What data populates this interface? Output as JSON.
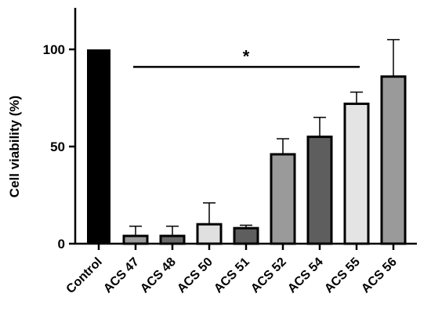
{
  "chart_data": {
    "type": "bar",
    "ylabel": "Cell viability (%)",
    "xlabel": "",
    "ylim": [
      0,
      100
    ],
    "yticks": [
      0,
      50,
      100
    ],
    "grid": false,
    "categories": [
      "Control",
      "ACS 47",
      "ACS 48",
      "ACS 50",
      "ACS 51",
      "ACS 52",
      "ACS 54",
      "ACS 55",
      "ACS 56"
    ],
    "values": [
      100,
      4,
      4,
      10,
      8,
      46,
      55,
      72,
      86
    ],
    "error_upper": [
      0,
      9,
      9,
      21,
      9.5,
      54,
      65,
      78,
      105
    ],
    "colors": [
      "#000000",
      "#9a9a9a",
      "#6a6a6a",
      "#e0e0e0",
      "#5e5e5e",
      "#9a9a9a",
      "#5e5e5e",
      "#e4e4e4",
      "#9a9a9a"
    ],
    "annotation": {
      "text": "*",
      "from_category": "ACS 47",
      "to_category": "ACS 55",
      "y": 91
    }
  }
}
